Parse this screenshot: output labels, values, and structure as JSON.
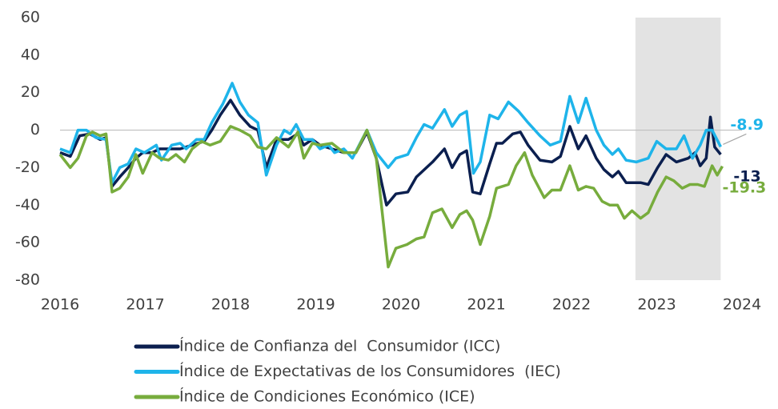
{
  "chart_data": {
    "type": "line",
    "xlim": [
      2016,
      2024
    ],
    "xticks": [
      2016,
      2017,
      2018,
      2019,
      2020,
      2021,
      2022,
      2023,
      2024
    ],
    "ylim": [
      -80,
      60
    ],
    "yticks": [
      -80,
      -60,
      -40,
      -20,
      0,
      20,
      40,
      60
    ],
    "grid": false,
    "highlight": [
      2022.75,
      2023.75
    ],
    "highlight_color": "#e3e3e3",
    "series": [
      {
        "name": "Índice de Confianza del  Consumidor (ICC)",
        "color": "#0b1f4f",
        "end_label": "-13",
        "x": [
          2016.0,
          2016.12,
          2016.23,
          2016.35,
          2016.47,
          2016.54,
          2016.61,
          2016.7,
          2016.8,
          2016.89,
          2016.97,
          2017.08,
          2017.17,
          2017.27,
          2017.41,
          2017.55,
          2017.69,
          2017.78,
          2017.88,
          2018.0,
          2018.11,
          2018.23,
          2018.32,
          2018.42,
          2018.54,
          2018.68,
          2018.79,
          2018.86,
          2018.96,
          2019.05,
          2019.19,
          2019.33,
          2019.47,
          2019.6,
          2019.71,
          2019.83,
          2019.94,
          2020.08,
          2020.18,
          2020.37,
          2020.51,
          2020.6,
          2020.69,
          2020.77,
          2020.84,
          2020.93,
          2021.04,
          2021.12,
          2021.19,
          2021.31,
          2021.4,
          2021.49,
          2021.63,
          2021.77,
          2021.87,
          2021.98,
          2022.08,
          2022.17,
          2022.29,
          2022.38,
          2022.48,
          2022.55,
          2022.64,
          2022.81,
          2022.9,
          2023.01,
          2023.11,
          2023.23,
          2023.37,
          2023.45,
          2023.51,
          2023.58,
          2023.63,
          2023.68,
          2023.75
        ],
        "values": [
          -12,
          -14,
          -3,
          -2,
          -5,
          -4,
          -30,
          -25,
          -20,
          -15,
          -12,
          -12,
          -10,
          -10,
          -10,
          -8,
          -6,
          0,
          8,
          16,
          8,
          2,
          0,
          -20,
          -5,
          -5,
          -2,
          -8,
          -5,
          -8,
          -10,
          -12,
          -12,
          -1,
          -15,
          -40,
          -34,
          -33,
          -25,
          -17,
          -10,
          -20,
          -13,
          -11,
          -33,
          -34,
          -18,
          -7,
          -7,
          -2,
          -1,
          -8,
          -16,
          -17,
          -14,
          2,
          -10,
          -3,
          -15,
          -21,
          -25,
          -22,
          -28,
          -28,
          -29,
          -20,
          -13,
          -17,
          -15,
          -12,
          -19,
          -15,
          7,
          -9,
          -13
        ]
      },
      {
        "name": "Índice de Expectativas de los Consumidores  (IEC)",
        "color": "#1eb4ea",
        "end_label": "-8.9",
        "x": [
          2016.0,
          2016.12,
          2016.21,
          2016.31,
          2016.42,
          2016.54,
          2016.61,
          2016.7,
          2016.8,
          2016.89,
          2016.99,
          2017.13,
          2017.19,
          2017.31,
          2017.41,
          2017.48,
          2017.6,
          2017.69,
          2017.78,
          2017.91,
          2018.02,
          2018.11,
          2018.21,
          2018.32,
          2018.42,
          2018.54,
          2018.63,
          2018.7,
          2018.77,
          2018.86,
          2018.96,
          2019.05,
          2019.15,
          2019.22,
          2019.33,
          2019.43,
          2019.6,
          2019.71,
          2019.85,
          2019.94,
          2020.08,
          2020.18,
          2020.27,
          2020.37,
          2020.51,
          2020.6,
          2020.69,
          2020.77,
          2020.85,
          2020.93,
          2021.04,
          2021.14,
          2021.26,
          2021.38,
          2021.49,
          2021.63,
          2021.75,
          2021.87,
          2021.98,
          2022.08,
          2022.17,
          2022.29,
          2022.38,
          2022.48,
          2022.55,
          2022.64,
          2022.76,
          2022.9,
          2023.0,
          2023.11,
          2023.23,
          2023.32,
          2023.42,
          2023.51,
          2023.58,
          2023.65,
          2023.75
        ],
        "values": [
          -10,
          -12,
          0,
          0,
          -4,
          -5,
          -28,
          -20,
          -18,
          -10,
          -12,
          -8,
          -16,
          -8,
          -7,
          -10,
          -5,
          -5,
          4,
          14,
          25,
          15,
          8,
          4,
          -24,
          -8,
          0,
          -2,
          3,
          -5,
          -5,
          -10,
          -8,
          -12,
          -10,
          -15,
          0,
          -12,
          -20,
          -15,
          -13,
          -4,
          3,
          1,
          11,
          2,
          8,
          10,
          -23,
          -17,
          8,
          6,
          15,
          10,
          4,
          -3,
          -8,
          -6,
          18,
          4,
          17,
          0,
          -8,
          -13,
          -10,
          -16,
          -17,
          -15,
          -6,
          -10,
          -10,
          -3,
          -15,
          -8,
          0,
          0,
          -8.9
        ]
      },
      {
        "name": "Índice de Condiciones Económico (ICE)",
        "color": "#77ac3d",
        "end_label": "-19.3",
        "x": [
          2016.0,
          2016.12,
          2016.21,
          2016.31,
          2016.38,
          2016.47,
          2016.54,
          2016.61,
          2016.7,
          2016.8,
          2016.89,
          2016.97,
          2017.08,
          2017.17,
          2017.27,
          2017.36,
          2017.46,
          2017.55,
          2017.66,
          2017.76,
          2017.88,
          2018.0,
          2018.11,
          2018.23,
          2018.32,
          2018.42,
          2018.54,
          2018.68,
          2018.79,
          2018.86,
          2018.96,
          2019.05,
          2019.19,
          2019.33,
          2019.47,
          2019.6,
          2019.71,
          2019.85,
          2019.94,
          2020.07,
          2020.18,
          2020.27,
          2020.37,
          2020.48,
          2020.6,
          2020.69,
          2020.77,
          2020.84,
          2020.93,
          2021.04,
          2021.12,
          2021.26,
          2021.35,
          2021.45,
          2021.54,
          2021.68,
          2021.77,
          2021.87,
          2021.98,
          2022.08,
          2022.17,
          2022.26,
          2022.36,
          2022.45,
          2022.54,
          2022.62,
          2022.71,
          2022.81,
          2022.9,
          2023.01,
          2023.11,
          2023.2,
          2023.3,
          2023.39,
          2023.48,
          2023.56,
          2023.65,
          2023.71,
          2023.77
        ],
        "values": [
          -13,
          -20,
          -15,
          -3,
          -1,
          -3,
          -2,
          -33,
          -31,
          -25,
          -13,
          -23,
          -12,
          -15,
          -16,
          -13,
          -17,
          -10,
          -6,
          -8,
          -6,
          2,
          0,
          -3,
          -9,
          -10,
          -4,
          -9,
          -1,
          -15,
          -7,
          -8,
          -7,
          -12,
          -12,
          0,
          -15,
          -73,
          -63,
          -61,
          -58,
          -57,
          -44,
          -42,
          -52,
          -45,
          -43,
          -48,
          -61,
          -46,
          -31,
          -29,
          -19,
          -12,
          -24,
          -36,
          -32,
          -32,
          -19,
          -32,
          -30,
          -31,
          -38,
          -40,
          -40,
          -47,
          -43,
          -47,
          -44,
          -33,
          -25,
          -27,
          -31,
          -29,
          -29,
          -30,
          -19,
          -24,
          -19.3
        ]
      }
    ]
  }
}
